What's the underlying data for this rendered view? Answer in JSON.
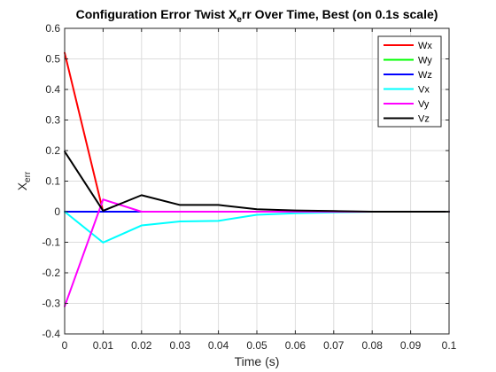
{
  "chart_data": {
    "type": "line",
    "title": {
      "prefix": "Configuration Error Twist X",
      "subscript": "e",
      "suffix": "rr Over Time, Best (on 0.1s scale)"
    },
    "xlabel": "Time (s)",
    "ylabel": {
      "base": "X",
      "subscript": "err"
    },
    "xlim": [
      0,
      0.1
    ],
    "ylim": [
      -0.4,
      0.6
    ],
    "xticks": [
      0,
      0.01,
      0.02,
      0.03,
      0.04,
      0.05,
      0.06,
      0.07,
      0.08,
      0.09,
      0.1
    ],
    "xtick_labels": [
      "0",
      "0.01",
      "0.02",
      "0.03",
      "0.04",
      "0.05",
      "0.06",
      "0.07",
      "0.08",
      "0.09",
      "0.1"
    ],
    "yticks": [
      -0.4,
      -0.3,
      -0.2,
      -0.1,
      0,
      0.1,
      0.2,
      0.3,
      0.4,
      0.5,
      0.6
    ],
    "ytick_labels": [
      "-0.4",
      "-0.3",
      "-0.2",
      "-0.1",
      "0",
      "0.1",
      "0.2",
      "0.3",
      "0.4",
      "0.5",
      "0.6"
    ],
    "grid": true,
    "legend_position": "top-right",
    "x": [
      0,
      0.01,
      0.02,
      0.03,
      0.04,
      0.05,
      0.06,
      0.07,
      0.08,
      0.09,
      0.1
    ],
    "series": [
      {
        "name": "Wx",
        "color": "#ff0000",
        "values": [
          0.52,
          0.0,
          0.0,
          0.0,
          0.0,
          0.0,
          0.0,
          0.0,
          0.0,
          0.0,
          0.0
        ]
      },
      {
        "name": "Wy",
        "color": "#00ff00",
        "values": [
          0.0,
          0.0,
          0.0,
          0.0,
          0.0,
          0.0,
          0.0,
          0.0,
          0.0,
          0.0,
          0.0
        ]
      },
      {
        "name": "Wz",
        "color": "#0000ff",
        "values": [
          0.0,
          0.0,
          0.0,
          0.0,
          0.0,
          0.0,
          0.0,
          0.0,
          0.0,
          0.0,
          0.0
        ]
      },
      {
        "name": "Vx",
        "color": "#00ffff",
        "values": [
          0.0,
          -0.101,
          -0.045,
          -0.032,
          -0.03,
          -0.01,
          -0.005,
          -0.002,
          0.0,
          0.0,
          0.0
        ]
      },
      {
        "name": "Vy",
        "color": "#ff00ff",
        "values": [
          -0.31,
          0.04,
          0.0,
          0.0,
          0.0,
          0.0,
          0.0,
          0.0,
          0.0,
          0.0,
          0.0
        ]
      },
      {
        "name": "Vz",
        "color": "#000000",
        "values": [
          0.197,
          0.003,
          0.054,
          0.022,
          0.022,
          0.008,
          0.004,
          0.002,
          0.0,
          0.0,
          0.0
        ]
      }
    ]
  }
}
